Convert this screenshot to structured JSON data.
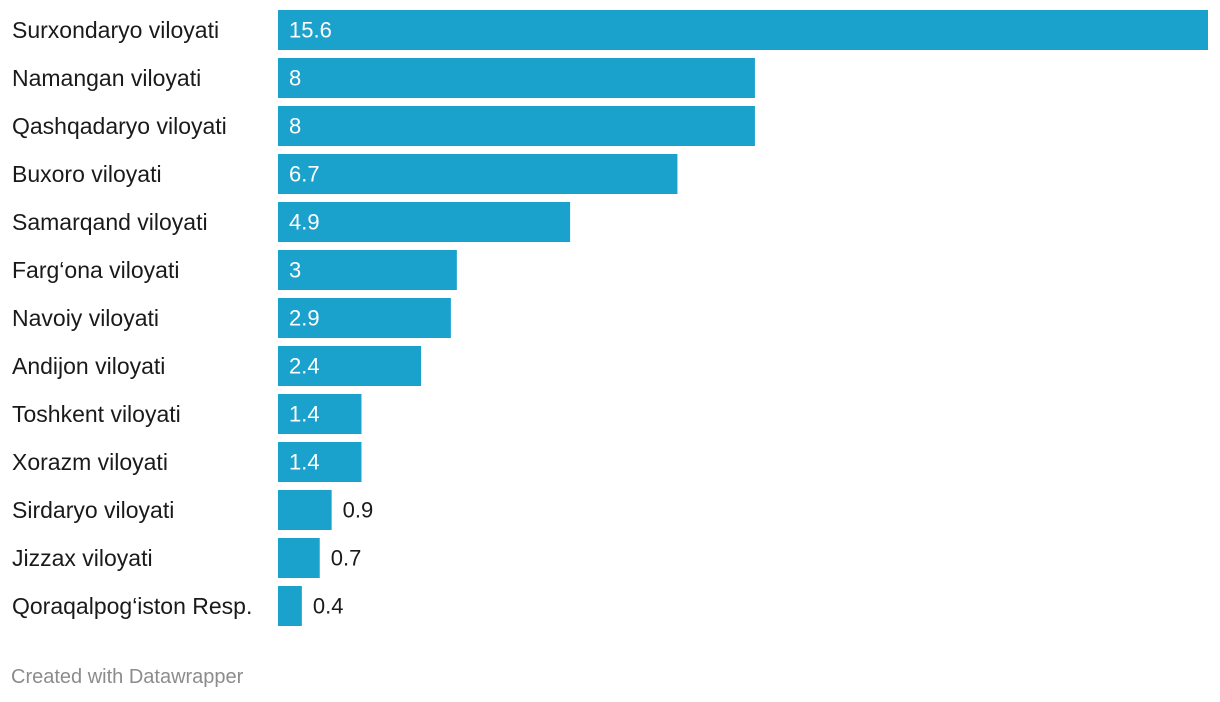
{
  "chart_data": {
    "type": "bar",
    "orientation": "horizontal",
    "categories": [
      "Surxondaryo viloyati",
      "Namangan viloyati",
      "Qashqadaryo viloyati",
      "Buxoro viloyati",
      "Samarqand viloyati",
      "Farg‘ona viloyati",
      "Navoiy viloyati",
      "Andijon viloyati",
      "Toshkent viloyati",
      "Xorazm viloyati",
      "Sirdaryo viloyati",
      "Jizzax viloyati",
      "Qoraqalpog‘iston Resp."
    ],
    "values": [
      15.6,
      8,
      8,
      6.7,
      4.9,
      3,
      2.9,
      2.4,
      1.4,
      1.4,
      0.9,
      0.7,
      0.4
    ],
    "value_labels": [
      "15.6",
      "8",
      "8",
      "6.7",
      "4.9",
      "3",
      "2.9",
      "2.4",
      "1.4",
      "1.4",
      "0.9",
      "0.7",
      "0.4"
    ],
    "xlim": [
      0,
      15.6
    ],
    "grid": false,
    "legend": "none",
    "colors": {
      "bar": "#1aa1cc",
      "label_inside": "#ffffff",
      "label_outside": "#1a1a1a"
    }
  },
  "footer": {
    "credit": "Created with Datawrapper"
  }
}
